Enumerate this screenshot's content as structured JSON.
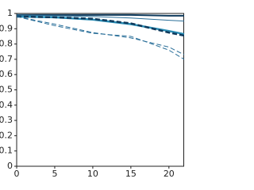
{
  "chart_data": {
    "type": "line",
    "x": [
      0,
      5,
      10,
      15,
      20,
      22
    ],
    "xlim": [
      0,
      22
    ],
    "xticks": [
      0,
      5,
      10,
      15,
      20
    ],
    "ylim": [
      0,
      1
    ],
    "yticks": [
      0,
      0.1,
      0.2,
      0.3,
      0.4,
      0.5,
      0.6,
      0.7,
      0.8,
      0.9,
      1
    ],
    "grid": false,
    "series": [
      {
        "color": "#0e3a5c",
        "style": "solid",
        "width": 2,
        "values": [
          0.99,
          0.99,
          0.99,
          0.99,
          0.985,
          0.985
        ]
      },
      {
        "color": "#2a6f99",
        "style": "solid",
        "width": 1,
        "values": [
          0.99,
          0.985,
          0.98,
          0.97,
          0.955,
          0.95
        ]
      },
      {
        "color": "#2a8db5",
        "style": "solid",
        "width": 2.5,
        "values": [
          0.98,
          0.975,
          0.96,
          0.93,
          0.885,
          0.865
        ]
      },
      {
        "color": "#0e3a5c",
        "style": "dashed",
        "width": 2.5,
        "values": [
          0.98,
          0.975,
          0.965,
          0.935,
          0.875,
          0.855
        ]
      },
      {
        "color": "#2a6f99",
        "style": "dashed",
        "width": 1,
        "values": [
          0.98,
          0.92,
          0.87,
          0.85,
          0.76,
          0.7
        ]
      },
      {
        "color": "#2a6f99",
        "style": "dashed",
        "width": 1,
        "values": [
          0.98,
          0.93,
          0.875,
          0.84,
          0.78,
          0.73
        ]
      }
    ]
  }
}
